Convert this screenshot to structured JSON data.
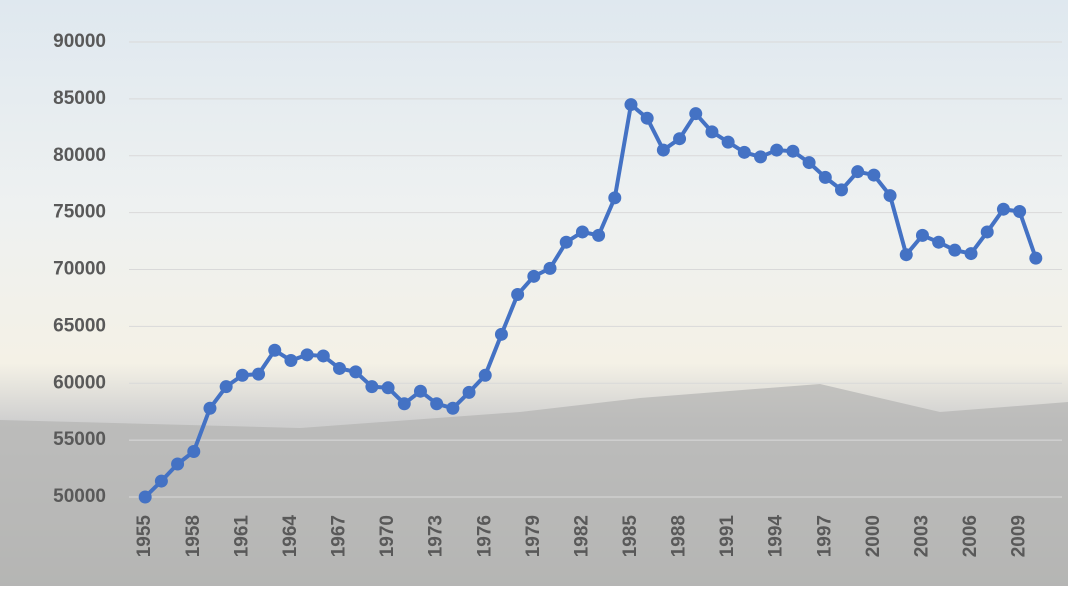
{
  "chart_data": {
    "type": "line",
    "x": [
      1955,
      1956,
      1957,
      1958,
      1959,
      1960,
      1961,
      1962,
      1963,
      1964,
      1965,
      1966,
      1967,
      1968,
      1969,
      1970,
      1971,
      1972,
      1973,
      1974,
      1975,
      1976,
      1977,
      1978,
      1979,
      1980,
      1981,
      1982,
      1983,
      1984,
      1985,
      1986,
      1987,
      1988,
      1989,
      1990,
      1991,
      1992,
      1993,
      1994,
      1995,
      1996,
      1997,
      1998,
      1999,
      2000,
      2001,
      2002,
      2003,
      2004,
      2005,
      2006,
      2007,
      2008,
      2009,
      2010
    ],
    "series": [
      {
        "color": "#4472c4",
        "values": [
          50000,
          51400,
          52900,
          54000,
          57800,
          59700,
          60700,
          60800,
          62900,
          62000,
          62500,
          62400,
          61300,
          61000,
          59700,
          59600,
          58200,
          59300,
          58200,
          57800,
          59200,
          60700,
          64300,
          67800,
          69400,
          70100,
          72400,
          73300,
          73000,
          76300,
          84500,
          83300,
          80500,
          81500,
          83700,
          82100,
          81200,
          80300,
          79900,
          80500,
          80400,
          79400,
          78100,
          77000,
          78600,
          78300,
          76500,
          71300,
          73000,
          72400,
          71700,
          71400,
          73300,
          75300,
          75100,
          71000
        ]
      }
    ],
    "xlim": [
      1954,
      2011
    ],
    "xticks": [
      1955,
      1958,
      1961,
      1964,
      1967,
      1970,
      1973,
      1976,
      1979,
      1982,
      1985,
      1988,
      1991,
      1994,
      1997,
      2000,
      2003,
      2006,
      2009
    ],
    "ylim": [
      50000,
      90000
    ],
    "yticks": [
      50000,
      55000,
      60000,
      65000,
      70000,
      75000,
      80000,
      85000,
      90000
    ],
    "grid": true
  }
}
